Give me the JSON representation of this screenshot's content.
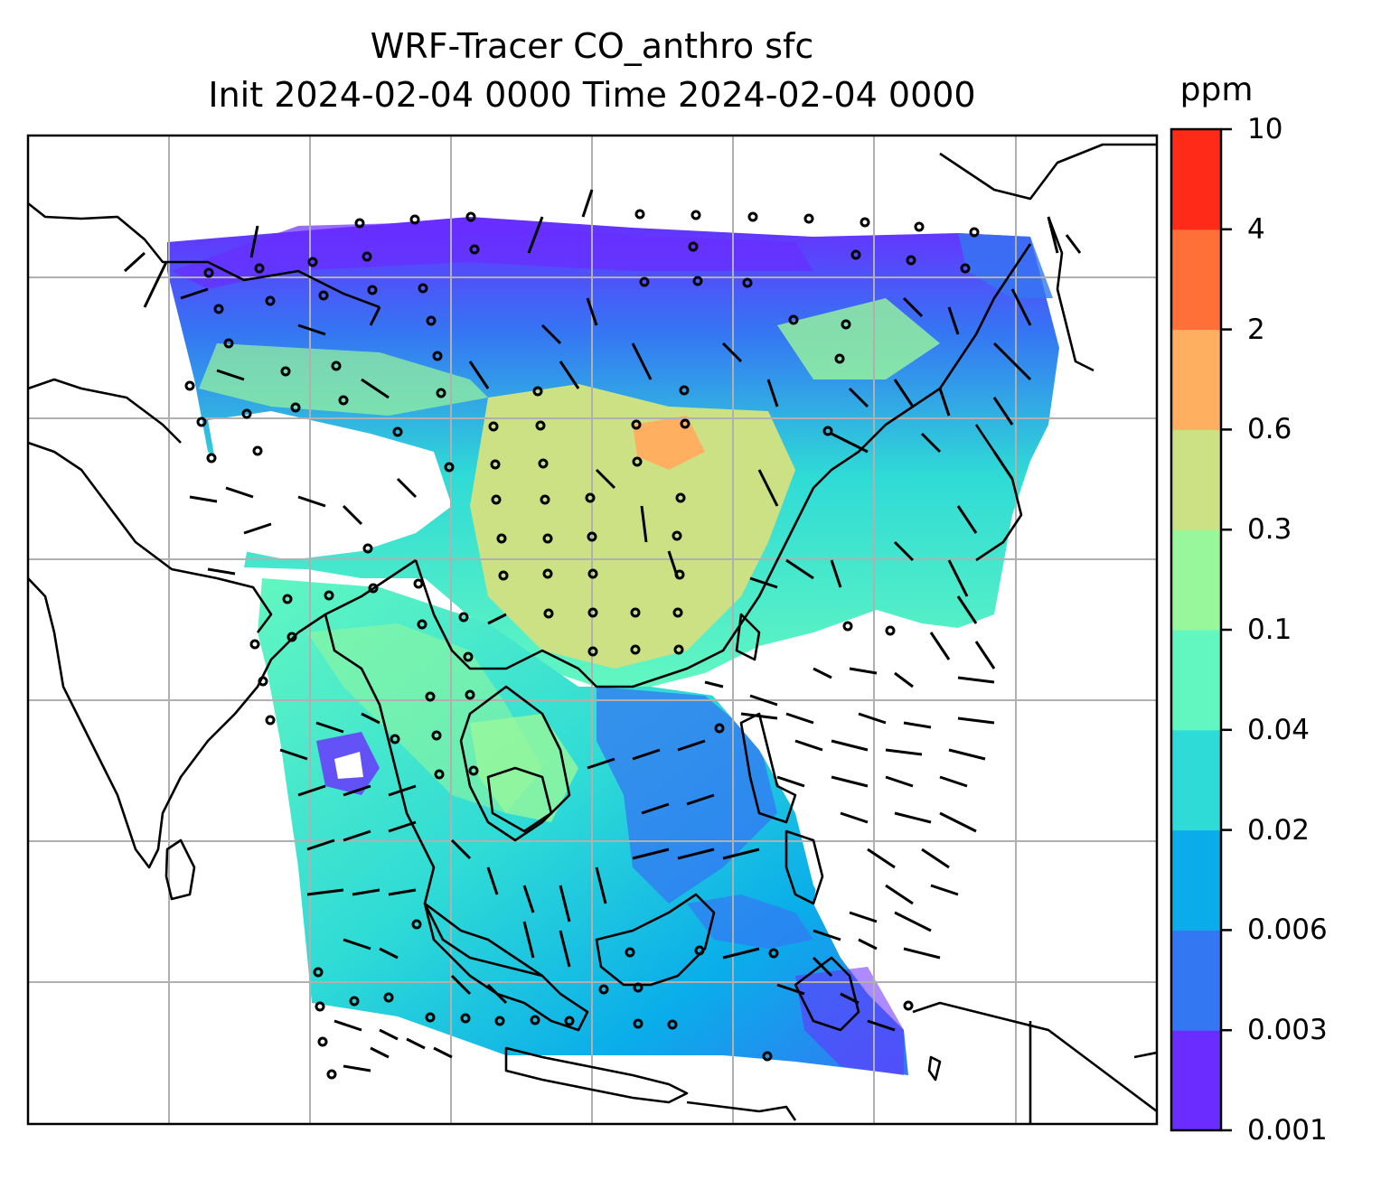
{
  "title": {
    "line1": "WRF-Tracer CO_anthro sfc",
    "line2": "Init 2024-02-04 0000 Time 2024-02-04 0000"
  },
  "colorbar": {
    "unit": "ppm",
    "levels": [
      "0.001",
      "0.003",
      "0.006",
      "0.02",
      "0.04",
      "0.1",
      "0.3",
      "0.6",
      "2",
      "4",
      "10"
    ],
    "colors": [
      "#6a2cff",
      "#3477f3",
      "#0aadea",
      "#2fdbd6",
      "#62f7c1",
      "#98f79a",
      "#cbe183",
      "#ffaf5f",
      "#ff7038",
      "#ff2a17"
    ]
  },
  "map": {
    "field": "CO_anthro",
    "level": "sfc",
    "gridlines": true,
    "region": "South and East Asia / Maritime Continent",
    "coastline_color": "#000000",
    "gridline_color": "#b0b0b0",
    "missing_color": "#ffffff",
    "wind_barbs": true
  }
}
